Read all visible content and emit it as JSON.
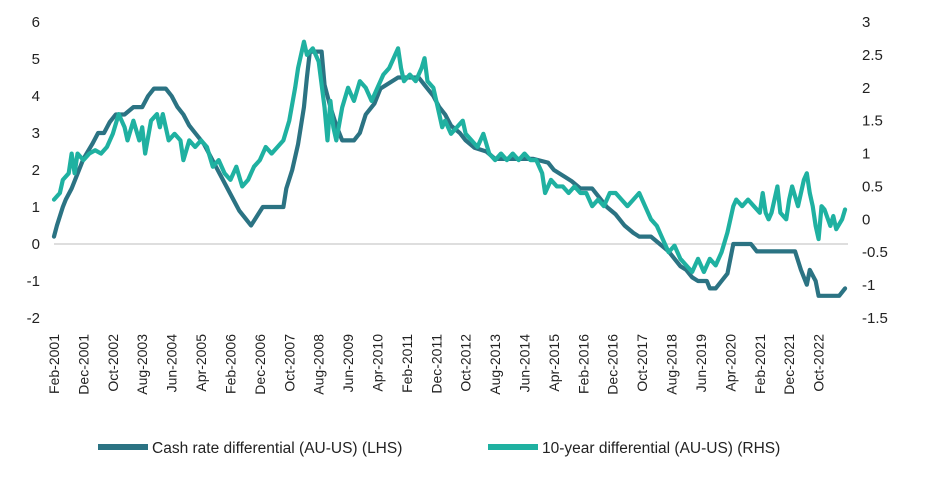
{
  "chart_data": {
    "type": "line",
    "title": "",
    "xlabel": "",
    "x_tick_labels": [
      "Feb-2001",
      "Dec-2001",
      "Oct-2002",
      "Aug-2003",
      "Jun-2004",
      "Apr-2005",
      "Feb-2006",
      "Dec-2006",
      "Oct-2007",
      "Aug-2008",
      "Jun-2009",
      "Apr-2010",
      "Feb-2011",
      "Dec-2011",
      "Oct-2012",
      "Aug-2013",
      "Jun-2014",
      "Apr-2015",
      "Feb-2016",
      "Dec-2016",
      "Oct-2017",
      "Aug-2018",
      "Jun-2019",
      "Apr-2020",
      "Feb-2021",
      "Dec-2021",
      "Oct-2022"
    ],
    "x_range": [
      "2001-02",
      "2023-08"
    ],
    "y_left": {
      "ticks": [
        "6",
        "5",
        "4",
        "3",
        "2",
        "1",
        "0",
        "-1",
        "-2"
      ],
      "ylim": [
        -2,
        6
      ]
    },
    "y_right": {
      "ticks": [
        "3",
        "2.5",
        "2",
        "1.5",
        "1",
        "0.5",
        "0",
        "-0.5",
        "-1",
        "-1.5"
      ],
      "ylim": [
        -1.5,
        3
      ]
    },
    "grid": false,
    "legend_position": "bottom",
    "series": [
      {
        "name": "Cash rate differential (AU-US) (LHS)",
        "axis": "left",
        "color": "#2b7383",
        "points": [
          [
            "2001-02",
            0.2
          ],
          [
            "2001-03",
            0.5
          ],
          [
            "2001-05",
            1.0
          ],
          [
            "2001-06",
            1.2
          ],
          [
            "2001-08",
            1.5
          ],
          [
            "2001-10",
            1.9
          ],
          [
            "2001-12",
            2.3
          ],
          [
            "2002-03",
            2.7
          ],
          [
            "2002-05",
            3.0
          ],
          [
            "2002-07",
            3.0
          ],
          [
            "2002-09",
            3.3
          ],
          [
            "2002-11",
            3.5
          ],
          [
            "2003-02",
            3.5
          ],
          [
            "2003-05",
            3.7
          ],
          [
            "2003-08",
            3.7
          ],
          [
            "2003-10",
            4.0
          ],
          [
            "2003-12",
            4.2
          ],
          [
            "2004-04",
            4.2
          ],
          [
            "2004-06",
            4.0
          ],
          [
            "2004-08",
            3.7
          ],
          [
            "2004-10",
            3.5
          ],
          [
            "2004-12",
            3.2
          ],
          [
            "2005-02",
            3.0
          ],
          [
            "2005-05",
            2.7
          ],
          [
            "2005-07",
            2.4
          ],
          [
            "2005-09",
            2.1
          ],
          [
            "2005-11",
            1.8
          ],
          [
            "2006-01",
            1.5
          ],
          [
            "2006-03",
            1.2
          ],
          [
            "2006-05",
            0.9
          ],
          [
            "2006-07",
            0.7
          ],
          [
            "2006-09",
            0.5
          ],
          [
            "2006-11",
            0.75
          ],
          [
            "2007-01",
            1.0
          ],
          [
            "2007-04",
            1.0
          ],
          [
            "2007-06",
            1.0
          ],
          [
            "2007-08",
            1.0
          ],
          [
            "2007-09",
            1.5
          ],
          [
            "2007-11",
            2.0
          ],
          [
            "2008-01",
            2.7
          ],
          [
            "2008-03",
            3.7
          ],
          [
            "2008-04",
            4.5
          ],
          [
            "2008-05",
            5.2
          ],
          [
            "2008-09",
            5.2
          ],
          [
            "2008-10",
            4.3
          ],
          [
            "2008-11",
            4.0
          ],
          [
            "2008-12",
            3.7
          ],
          [
            "2009-02",
            3.2
          ],
          [
            "2009-04",
            2.8
          ],
          [
            "2009-08",
            2.8
          ],
          [
            "2009-10",
            3.0
          ],
          [
            "2009-12",
            3.5
          ],
          [
            "2010-03",
            3.8
          ],
          [
            "2010-05",
            4.2
          ],
          [
            "2010-11",
            4.5
          ],
          [
            "2011-06",
            4.5
          ],
          [
            "2011-08",
            4.3
          ],
          [
            "2011-11",
            4.0
          ],
          [
            "2012-01",
            3.7
          ],
          [
            "2012-03",
            3.5
          ],
          [
            "2012-05",
            3.2
          ],
          [
            "2012-08",
            3.0
          ],
          [
            "2012-10",
            2.8
          ],
          [
            "2013-01",
            2.6
          ],
          [
            "2013-05",
            2.5
          ],
          [
            "2013-08",
            2.3
          ],
          [
            "2014-09",
            2.3
          ],
          [
            "2015-02",
            2.2
          ],
          [
            "2015-04",
            2.0
          ],
          [
            "2015-08",
            1.8
          ],
          [
            "2015-10",
            1.7
          ],
          [
            "2016-01",
            1.5
          ],
          [
            "2016-05",
            1.5
          ],
          [
            "2016-07",
            1.3
          ],
          [
            "2016-10",
            1.0
          ],
          [
            "2017-01",
            0.8
          ],
          [
            "2017-04",
            0.5
          ],
          [
            "2017-07",
            0.3
          ],
          [
            "2017-09",
            0.2
          ],
          [
            "2018-01",
            0.2
          ],
          [
            "2018-04",
            0.0
          ],
          [
            "2018-07",
            -0.2
          ],
          [
            "2018-09",
            -0.4
          ],
          [
            "2018-11",
            -0.6
          ],
          [
            "2019-01",
            -0.7
          ],
          [
            "2019-03",
            -0.9
          ],
          [
            "2019-05",
            -1.0
          ],
          [
            "2019-08",
            -1.0
          ],
          [
            "2019-09",
            -1.2
          ],
          [
            "2019-11",
            -1.2
          ],
          [
            "2020-01",
            -1.0
          ],
          [
            "2020-03",
            -0.8
          ],
          [
            "2020-05",
            0.0
          ],
          [
            "2020-11",
            0.0
          ],
          [
            "2021-01",
            -0.2
          ],
          [
            "2021-12",
            -0.2
          ],
          [
            "2022-02",
            -0.2
          ],
          [
            "2022-04",
            -0.7
          ],
          [
            "2022-06",
            -1.1
          ],
          [
            "2022-07",
            -0.7
          ],
          [
            "2022-09",
            -1.0
          ],
          [
            "2022-10",
            -1.4
          ],
          [
            "2023-05",
            -1.4
          ],
          [
            "2023-07",
            -1.2
          ]
        ]
      },
      {
        "name": "10-year differential (AU-US) (RHS)",
        "axis": "right",
        "color": "#1fb1a1",
        "points": [
          [
            "2001-02",
            0.3
          ],
          [
            "2001-04",
            0.4
          ],
          [
            "2001-05",
            0.6
          ],
          [
            "2001-07",
            0.7
          ],
          [
            "2001-08",
            1.0
          ],
          [
            "2001-09",
            0.7
          ],
          [
            "2001-10",
            1.0
          ],
          [
            "2001-12",
            0.9
          ],
          [
            "2002-02",
            1.0
          ],
          [
            "2002-04",
            1.05
          ],
          [
            "2002-06",
            1.0
          ],
          [
            "2002-08",
            1.1
          ],
          [
            "2002-10",
            1.3
          ],
          [
            "2002-12",
            1.6
          ],
          [
            "2003-02",
            1.4
          ],
          [
            "2003-03",
            1.2
          ],
          [
            "2003-05",
            1.5
          ],
          [
            "2003-07",
            1.2
          ],
          [
            "2003-08",
            1.4
          ],
          [
            "2003-09",
            1.0
          ],
          [
            "2003-11",
            1.5
          ],
          [
            "2004-01",
            1.6
          ],
          [
            "2004-02",
            1.4
          ],
          [
            "2004-03",
            1.6
          ],
          [
            "2004-05",
            1.2
          ],
          [
            "2004-07",
            1.3
          ],
          [
            "2004-09",
            1.2
          ],
          [
            "2004-10",
            0.9
          ],
          [
            "2004-12",
            1.2
          ],
          [
            "2005-02",
            1.1
          ],
          [
            "2005-04",
            1.2
          ],
          [
            "2005-06",
            1.1
          ],
          [
            "2005-08",
            0.8
          ],
          [
            "2005-10",
            0.9
          ],
          [
            "2005-12",
            0.7
          ],
          [
            "2006-02",
            0.6
          ],
          [
            "2006-04",
            0.8
          ],
          [
            "2006-06",
            0.5
          ],
          [
            "2006-08",
            0.6
          ],
          [
            "2006-10",
            0.8
          ],
          [
            "2006-12",
            0.9
          ],
          [
            "2007-02",
            1.1
          ],
          [
            "2007-04",
            1.0
          ],
          [
            "2007-06",
            1.1
          ],
          [
            "2007-08",
            1.2
          ],
          [
            "2007-10",
            1.5
          ],
          [
            "2007-12",
            2.0
          ],
          [
            "2008-01",
            2.3
          ],
          [
            "2008-02",
            2.5
          ],
          [
            "2008-03",
            2.7
          ],
          [
            "2008-04",
            2.5
          ],
          [
            "2008-06",
            2.6
          ],
          [
            "2008-08",
            2.4
          ],
          [
            "2008-10",
            1.7
          ],
          [
            "2008-11",
            1.2
          ],
          [
            "2008-12",
            1.8
          ],
          [
            "2009-01",
            1.4
          ],
          [
            "2009-02",
            1.2
          ],
          [
            "2009-04",
            1.7
          ],
          [
            "2009-06",
            2.0
          ],
          [
            "2009-08",
            1.8
          ],
          [
            "2009-10",
            2.1
          ],
          [
            "2009-12",
            2.0
          ],
          [
            "2010-02",
            1.8
          ],
          [
            "2010-04",
            2.0
          ],
          [
            "2010-06",
            2.2
          ],
          [
            "2010-08",
            2.3
          ],
          [
            "2010-10",
            2.5
          ],
          [
            "2010-11",
            2.6
          ],
          [
            "2010-12",
            2.3
          ],
          [
            "2011-01",
            2.1
          ],
          [
            "2011-03",
            2.2
          ],
          [
            "2011-05",
            2.1
          ],
          [
            "2011-07",
            2.3
          ],
          [
            "2011-08",
            2.45
          ],
          [
            "2011-09",
            2.1
          ],
          [
            "2011-11",
            2.0
          ],
          [
            "2012-01",
            1.6
          ],
          [
            "2012-02",
            1.4
          ],
          [
            "2012-03",
            1.5
          ],
          [
            "2012-05",
            1.3
          ],
          [
            "2012-07",
            1.4
          ],
          [
            "2012-09",
            1.5
          ],
          [
            "2012-10",
            1.3
          ],
          [
            "2012-12",
            1.2
          ],
          [
            "2013-02",
            1.1
          ],
          [
            "2013-04",
            1.3
          ],
          [
            "2013-06",
            1.0
          ],
          [
            "2013-08",
            0.9
          ],
          [
            "2013-10",
            1.0
          ],
          [
            "2013-12",
            0.9
          ],
          [
            "2014-02",
            1.0
          ],
          [
            "2014-04",
            0.9
          ],
          [
            "2014-06",
            1.0
          ],
          [
            "2014-08",
            0.9
          ],
          [
            "2014-10",
            0.9
          ],
          [
            "2014-12",
            0.7
          ],
          [
            "2015-01",
            0.4
          ],
          [
            "2015-03",
            0.6
          ],
          [
            "2015-05",
            0.5
          ],
          [
            "2015-07",
            0.5
          ],
          [
            "2015-09",
            0.4
          ],
          [
            "2015-11",
            0.5
          ],
          [
            "2016-01",
            0.4
          ],
          [
            "2016-03",
            0.4
          ],
          [
            "2016-05",
            0.2
          ],
          [
            "2016-07",
            0.3
          ],
          [
            "2016-09",
            0.2
          ],
          [
            "2016-11",
            0.4
          ],
          [
            "2017-01",
            0.4
          ],
          [
            "2017-03",
            0.3
          ],
          [
            "2017-05",
            0.2
          ],
          [
            "2017-07",
            0.3
          ],
          [
            "2017-09",
            0.4
          ],
          [
            "2017-11",
            0.2
          ],
          [
            "2018-01",
            0.0
          ],
          [
            "2018-03",
            -0.1
          ],
          [
            "2018-05",
            -0.3
          ],
          [
            "2018-07",
            -0.5
          ],
          [
            "2018-09",
            -0.4
          ],
          [
            "2018-11",
            -0.6
          ],
          [
            "2019-01",
            -0.7
          ],
          [
            "2019-03",
            -0.8
          ],
          [
            "2019-05",
            -0.6
          ],
          [
            "2019-07",
            -0.8
          ],
          [
            "2019-09",
            -0.6
          ],
          [
            "2019-11",
            -0.7
          ],
          [
            "2020-01",
            -0.5
          ],
          [
            "2020-03",
            -0.2
          ],
          [
            "2020-05",
            0.2
          ],
          [
            "2020-06",
            0.3
          ],
          [
            "2020-08",
            0.2
          ],
          [
            "2020-10",
            0.3
          ],
          [
            "2020-12",
            0.2
          ],
          [
            "2021-02",
            0.1
          ],
          [
            "2021-03",
            0.4
          ],
          [
            "2021-04",
            0.1
          ],
          [
            "2021-05",
            0.0
          ],
          [
            "2021-06",
            0.1
          ],
          [
            "2021-08",
            0.5
          ],
          [
            "2021-09",
            0.1
          ],
          [
            "2021-11",
            0.0
          ],
          [
            "2021-12",
            0.3
          ],
          [
            "2022-01",
            0.5
          ],
          [
            "2022-03",
            0.2
          ],
          [
            "2022-05",
            0.6
          ],
          [
            "2022-06",
            0.7
          ],
          [
            "2022-07",
            0.4
          ],
          [
            "2022-08",
            0.2
          ],
          [
            "2022-09",
            -0.1
          ],
          [
            "2022-10",
            -0.3
          ],
          [
            "2022-11",
            0.2
          ],
          [
            "2022-12",
            0.15
          ],
          [
            "2023-02",
            -0.1
          ],
          [
            "2023-03",
            0.05
          ],
          [
            "2023-04",
            -0.15
          ],
          [
            "2023-06",
            0.0
          ],
          [
            "2023-07",
            0.15
          ]
        ]
      }
    ]
  }
}
